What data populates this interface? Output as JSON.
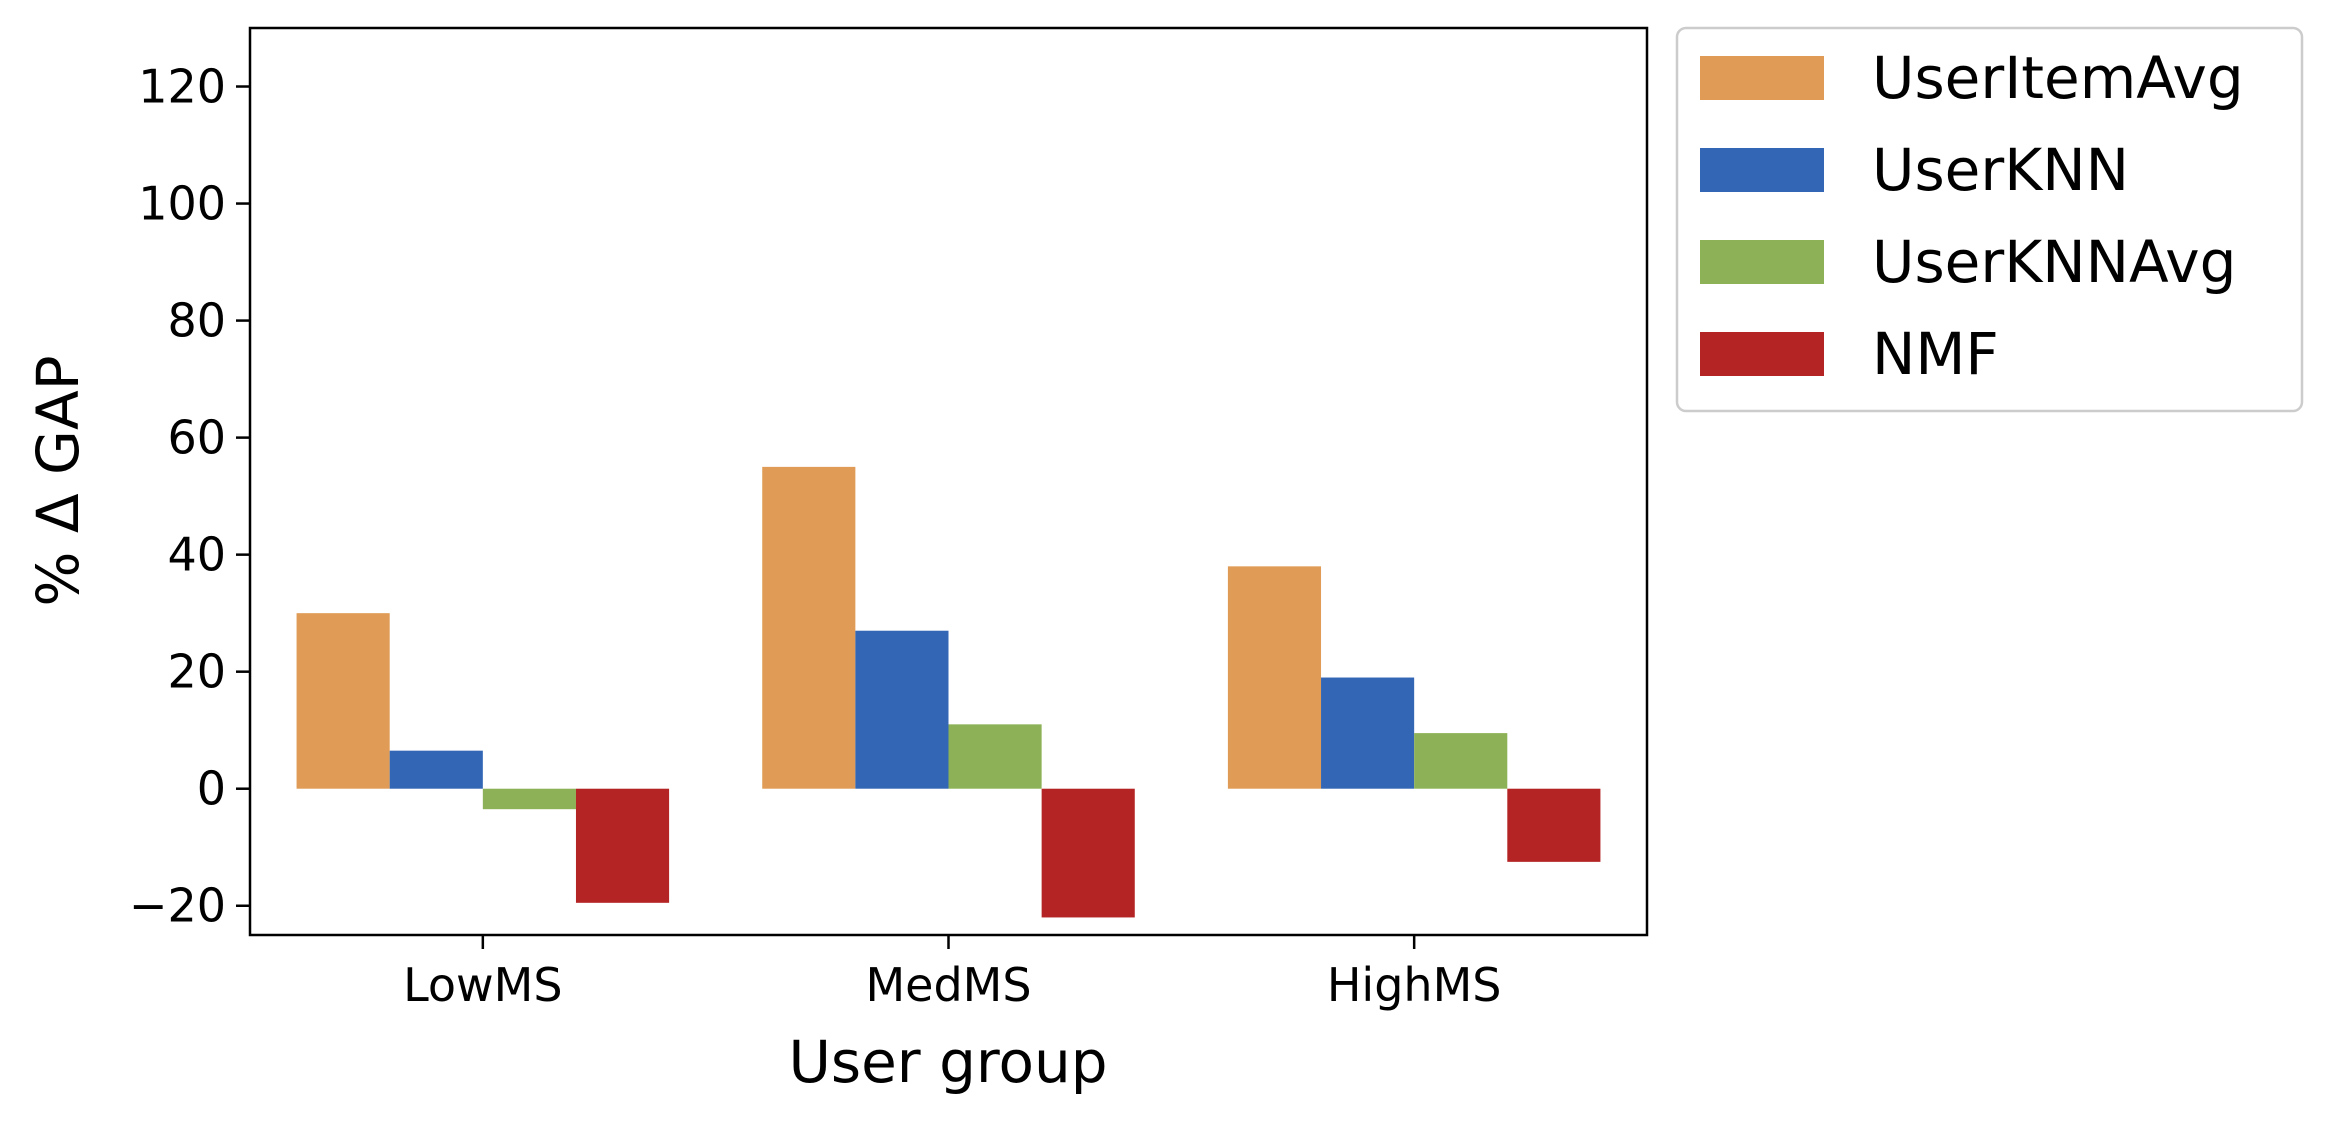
{
  "chart_data": {
    "type": "bar",
    "title": "",
    "xlabel": "User group",
    "ylabel": "% Δ GAP",
    "categories": [
      "LowMS",
      "MedMS",
      "HighMS"
    ],
    "ylim": [
      -25,
      130
    ],
    "yticks": [
      -20,
      0,
      20,
      40,
      60,
      80,
      100,
      120
    ],
    "ytick_labels": [
      "−20",
      "0",
      "20",
      "40",
      "60",
      "80",
      "100",
      "120"
    ],
    "grid": false,
    "legend_position": "outside-top-right",
    "series": [
      {
        "name": "UserItemAvg",
        "color": "#e09c56",
        "values": [
          30,
          55,
          38
        ]
      },
      {
        "name": "UserKNN",
        "color": "#3366b4",
        "values": [
          6.5,
          27,
          19
        ]
      },
      {
        "name": "UserKNNAvg",
        "color": "#8db156",
        "values": [
          -3.5,
          11,
          9.5
        ]
      },
      {
        "name": "NMF",
        "color": "#b42424",
        "values": [
          -19.5,
          -22,
          -12.5
        ]
      }
    ]
  }
}
